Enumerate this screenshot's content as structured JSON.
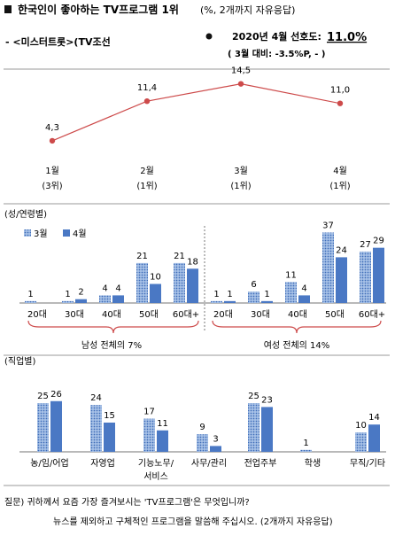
{
  "header": {
    "title": "한국인이 좋아하는 TV프로그램 1위",
    "title_note": "(%, 2개까지 자유응답)",
    "program": "- <미스터트롯>(TV조선",
    "pref_label": "2020년 4월 선호도:",
    "pref_value": "11.0%",
    "compare": "( 3월 대비: -3.5%P,   -   )"
  },
  "colors": {
    "red": "#cd4a4a",
    "bar_blue": "#4a78c4",
    "bar_dot_fill": "#9bb9e4",
    "bar_dot": "#4a78c4",
    "rule": "#9a9a9a"
  },
  "chart_data": [
    {
      "type": "line",
      "name": "trend",
      "categories": [
        [
          "1월",
          "(3위)"
        ],
        [
          "2월",
          "(1위)"
        ],
        [
          "3월",
          "(1위)"
        ],
        [
          "4월",
          "(1위)"
        ]
      ],
      "values": [
        4.3,
        11.4,
        14.5,
        11.0
      ],
      "labels": [
        "4,3",
        "11,4",
        "14,5",
        "11,0"
      ]
    },
    {
      "type": "bar",
      "name": "gender_age",
      "section_label": "(성/연령별)",
      "legend": [
        "3월",
        "4월"
      ],
      "categories": [
        "20대",
        "30대",
        "40대",
        "50대",
        "60대+",
        "20대",
        "30대",
        "40대",
        "50대",
        "60대+"
      ],
      "series": [
        {
          "name": "3월",
          "values": [
            1,
            1,
            4,
            21,
            21,
            1,
            6,
            11,
            37,
            27
          ]
        },
        {
          "name": "4월",
          "values": [
            0,
            2,
            4,
            10,
            18,
            1,
            1,
            4,
            24,
            29
          ]
        }
      ],
      "labels_a": [
        "1",
        "1",
        "4",
        "21",
        "21",
        "1",
        "6",
        "11",
        "37",
        "27"
      ],
      "labels_b": [
        "",
        "2",
        "4",
        "10",
        "18",
        "1",
        "1",
        "4",
        "24",
        "29"
      ],
      "groups": [
        "남성 전체의 7%",
        "여성 전체의 14%"
      ]
    },
    {
      "type": "bar",
      "name": "occupation",
      "section_label": "(직업별)",
      "categories": [
        [
          "농/임/어업"
        ],
        [
          "자영업"
        ],
        [
          "기능노무/",
          "서비스"
        ],
        [
          "사무/관리"
        ],
        [
          "전업주부"
        ],
        [
          "학생"
        ],
        [
          "무직/기타"
        ]
      ],
      "series": [
        {
          "name": "3월",
          "values": [
            25,
            24,
            17,
            9,
            25,
            1,
            10
          ]
        },
        {
          "name": "4월",
          "values": [
            26,
            15,
            11,
            3,
            23,
            0,
            14
          ]
        }
      ],
      "labels_a": [
        "25",
        "24",
        "17",
        "9",
        "25",
        "1",
        "10"
      ],
      "labels_b": [
        "26",
        "15",
        "11",
        "3",
        "23",
        "",
        "14"
      ]
    }
  ],
  "footer": {
    "question_1": "질문) 귀하께서 요즘 가장 즐겨보시는 'TV프로그램'은 무엇입니까?",
    "question_2": "뉴스를 제외하고 구체적인 프로그램을 말씀해 주십시오. (2개까지 자유응답)"
  }
}
